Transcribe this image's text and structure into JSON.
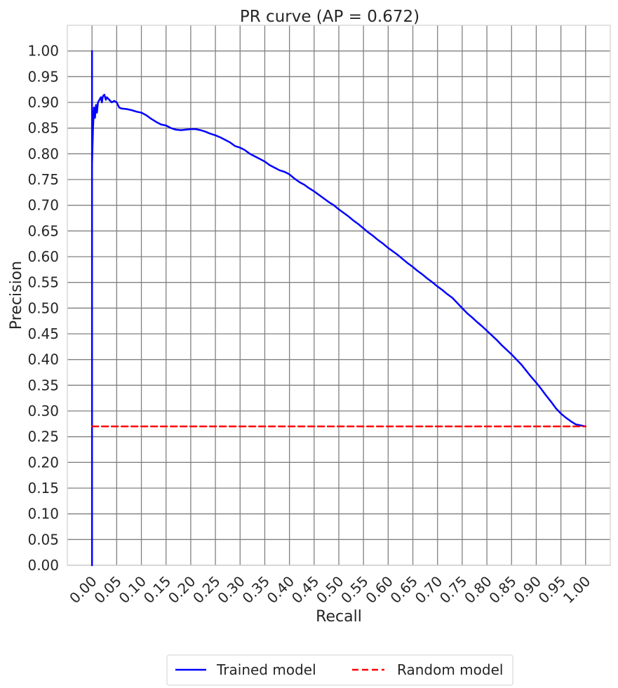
{
  "chart_data": {
    "type": "line",
    "title": "PR curve (AP = 0.672)",
    "xlabel": "Recall",
    "ylabel": "Precision",
    "xlim": [
      -0.05,
      1.05
    ],
    "ylim": [
      0.0,
      1.05
    ],
    "grid": true,
    "legend_position": "bottom",
    "x_ticks": [
      "0.00",
      "0.05",
      "0.10",
      "0.15",
      "0.20",
      "0.25",
      "0.30",
      "0.35",
      "0.40",
      "0.45",
      "0.50",
      "0.55",
      "0.60",
      "0.65",
      "0.70",
      "0.75",
      "0.80",
      "0.85",
      "0.90",
      "0.95",
      "1.00"
    ],
    "y_ticks": [
      "0.00",
      "0.05",
      "0.10",
      "0.15",
      "0.20",
      "0.25",
      "0.30",
      "0.35",
      "0.40",
      "0.45",
      "0.50",
      "0.55",
      "0.60",
      "0.65",
      "0.70",
      "0.75",
      "0.80",
      "0.85",
      "0.90",
      "0.95",
      "1.00"
    ],
    "series": [
      {
        "name": "Trained model",
        "color": "#0000ff",
        "style": "solid",
        "points": [
          [
            0.0,
            0.0
          ],
          [
            0.0,
            1.0
          ],
          [
            0.0,
            0.78
          ],
          [
            0.002,
            0.85
          ],
          [
            0.004,
            0.89
          ],
          [
            0.006,
            0.87
          ],
          [
            0.008,
            0.895
          ],
          [
            0.01,
            0.88
          ],
          [
            0.012,
            0.9
          ],
          [
            0.015,
            0.905
          ],
          [
            0.018,
            0.91
          ],
          [
            0.02,
            0.9
          ],
          [
            0.022,
            0.912
          ],
          [
            0.025,
            0.915
          ],
          [
            0.028,
            0.905
          ],
          [
            0.03,
            0.91
          ],
          [
            0.035,
            0.905
          ],
          [
            0.04,
            0.9
          ],
          [
            0.045,
            0.903
          ],
          [
            0.05,
            0.9
          ],
          [
            0.055,
            0.89
          ],
          [
            0.06,
            0.888
          ],
          [
            0.07,
            0.887
          ],
          [
            0.08,
            0.885
          ],
          [
            0.09,
            0.882
          ],
          [
            0.1,
            0.88
          ],
          [
            0.11,
            0.875
          ],
          [
            0.12,
            0.868
          ],
          [
            0.13,
            0.862
          ],
          [
            0.14,
            0.857
          ],
          [
            0.15,
            0.855
          ],
          [
            0.16,
            0.85
          ],
          [
            0.17,
            0.847
          ],
          [
            0.18,
            0.846
          ],
          [
            0.19,
            0.847
          ],
          [
            0.2,
            0.848
          ],
          [
            0.21,
            0.848
          ],
          [
            0.22,
            0.846
          ],
          [
            0.23,
            0.843
          ],
          [
            0.24,
            0.839
          ],
          [
            0.25,
            0.836
          ],
          [
            0.26,
            0.832
          ],
          [
            0.27,
            0.827
          ],
          [
            0.28,
            0.822
          ],
          [
            0.29,
            0.815
          ],
          [
            0.3,
            0.812
          ],
          [
            0.31,
            0.807
          ],
          [
            0.32,
            0.8
          ],
          [
            0.33,
            0.795
          ],
          [
            0.34,
            0.79
          ],
          [
            0.35,
            0.785
          ],
          [
            0.36,
            0.778
          ],
          [
            0.37,
            0.773
          ],
          [
            0.38,
            0.768
          ],
          [
            0.39,
            0.765
          ],
          [
            0.4,
            0.76
          ],
          [
            0.41,
            0.752
          ],
          [
            0.42,
            0.745
          ],
          [
            0.43,
            0.74
          ],
          [
            0.44,
            0.733
          ],
          [
            0.45,
            0.727
          ],
          [
            0.46,
            0.72
          ],
          [
            0.47,
            0.713
          ],
          [
            0.48,
            0.706
          ],
          [
            0.49,
            0.7
          ],
          [
            0.5,
            0.692
          ],
          [
            0.51,
            0.685
          ],
          [
            0.52,
            0.678
          ],
          [
            0.53,
            0.67
          ],
          [
            0.54,
            0.663
          ],
          [
            0.55,
            0.655
          ],
          [
            0.56,
            0.647
          ],
          [
            0.57,
            0.64
          ],
          [
            0.58,
            0.632
          ],
          [
            0.59,
            0.625
          ],
          [
            0.6,
            0.617
          ],
          [
            0.61,
            0.61
          ],
          [
            0.62,
            0.603
          ],
          [
            0.63,
            0.595
          ],
          [
            0.64,
            0.587
          ],
          [
            0.65,
            0.58
          ],
          [
            0.66,
            0.572
          ],
          [
            0.67,
            0.565
          ],
          [
            0.68,
            0.557
          ],
          [
            0.69,
            0.55
          ],
          [
            0.7,
            0.542
          ],
          [
            0.71,
            0.535
          ],
          [
            0.72,
            0.527
          ],
          [
            0.73,
            0.52
          ],
          [
            0.74,
            0.51
          ],
          [
            0.75,
            0.5
          ],
          [
            0.76,
            0.49
          ],
          [
            0.77,
            0.482
          ],
          [
            0.78,
            0.473
          ],
          [
            0.79,
            0.465
          ],
          [
            0.8,
            0.456
          ],
          [
            0.81,
            0.447
          ],
          [
            0.82,
            0.438
          ],
          [
            0.83,
            0.428
          ],
          [
            0.84,
            0.419
          ],
          [
            0.85,
            0.41
          ],
          [
            0.86,
            0.4
          ],
          [
            0.87,
            0.39
          ],
          [
            0.88,
            0.378
          ],
          [
            0.89,
            0.366
          ],
          [
            0.9,
            0.355
          ],
          [
            0.91,
            0.343
          ],
          [
            0.92,
            0.33
          ],
          [
            0.93,
            0.318
          ],
          [
            0.94,
            0.305
          ],
          [
            0.95,
            0.295
          ],
          [
            0.96,
            0.287
          ],
          [
            0.97,
            0.28
          ],
          [
            0.98,
            0.274
          ],
          [
            1.0,
            0.27
          ]
        ]
      },
      {
        "name": "Random model",
        "color": "#ff0000",
        "style": "dashed",
        "points": [
          [
            0.0,
            0.27
          ],
          [
            1.0,
            0.27
          ]
        ]
      }
    ]
  }
}
